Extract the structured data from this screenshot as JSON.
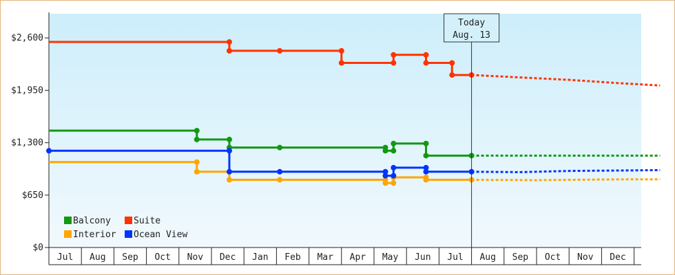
{
  "chart_data": {
    "type": "line",
    "ylim": [
      0,
      2900
    ],
    "yticks": [
      0,
      650,
      1300,
      1950,
      2600
    ],
    "ytick_labels": [
      "$0",
      "$650",
      "$1,300",
      "$1,950",
      "$2,600"
    ],
    "months": [
      "Jul",
      "Aug",
      "Sep",
      "Oct",
      "Nov",
      "Dec",
      "Jan",
      "Feb",
      "Mar",
      "Apr",
      "May",
      "Jun",
      "Jul",
      "Aug",
      "Sep",
      "Oct",
      "Nov",
      "Dec"
    ],
    "today": {
      "line1": "Today",
      "line2": "Aug. 13",
      "x": 13.0
    },
    "legend": {
      "placement": "bottom-left"
    },
    "series": [
      {
        "name": "Suite",
        "color": "#ff3300",
        "points": [
          [
            0,
            2550
          ],
          [
            5.55,
            2550
          ],
          [
            5.55,
            2440
          ],
          [
            7.1,
            2440
          ],
          [
            9.0,
            2440
          ],
          [
            9.0,
            2290
          ],
          [
            10.6,
            2290
          ],
          [
            10.6,
            2390
          ],
          [
            11.6,
            2390
          ],
          [
            11.6,
            2290
          ],
          [
            12.4,
            2290
          ],
          [
            12.4,
            2140
          ],
          [
            13.0,
            2140
          ]
        ],
        "dots": [
          [
            5.55,
            2550
          ],
          [
            5.55,
            2440
          ],
          [
            7.1,
            2440
          ],
          [
            9.0,
            2440
          ],
          [
            9.0,
            2290
          ],
          [
            10.6,
            2290
          ],
          [
            10.6,
            2390
          ],
          [
            11.6,
            2390
          ],
          [
            11.6,
            2290
          ],
          [
            12.4,
            2290
          ],
          [
            12.4,
            2140
          ],
          [
            13.0,
            2140
          ]
        ],
        "projection": [
          [
            13.0,
            2140
          ],
          [
            14.5,
            2110
          ],
          [
            16.0,
            2080
          ],
          [
            17.5,
            2040
          ],
          [
            18.8,
            2010
          ]
        ]
      },
      {
        "name": "Balcony",
        "color": "#119911",
        "points": [
          [
            0,
            1450
          ],
          [
            4.55,
            1450
          ],
          [
            4.55,
            1340
          ],
          [
            5.55,
            1340
          ],
          [
            5.55,
            1240
          ],
          [
            7.1,
            1240
          ],
          [
            10.35,
            1240
          ],
          [
            10.35,
            1200
          ],
          [
            10.6,
            1200
          ],
          [
            10.6,
            1290
          ],
          [
            11.6,
            1290
          ],
          [
            11.6,
            1140
          ],
          [
            13.0,
            1140
          ]
        ],
        "dots": [
          [
            4.55,
            1450
          ],
          [
            4.55,
            1340
          ],
          [
            5.55,
            1340
          ],
          [
            5.55,
            1240
          ],
          [
            7.1,
            1240
          ],
          [
            10.35,
            1240
          ],
          [
            10.35,
            1200
          ],
          [
            10.6,
            1200
          ],
          [
            10.6,
            1290
          ],
          [
            11.6,
            1290
          ],
          [
            11.6,
            1140
          ],
          [
            13.0,
            1140
          ]
        ],
        "projection": [
          [
            13.0,
            1140
          ],
          [
            16.0,
            1140
          ],
          [
            18.8,
            1140
          ]
        ]
      },
      {
        "name": "Interior",
        "color": "#ffa500",
        "points": [
          [
            0,
            1060
          ],
          [
            4.55,
            1060
          ],
          [
            4.55,
            940
          ],
          [
            5.55,
            940
          ],
          [
            5.55,
            840
          ],
          [
            7.1,
            840
          ],
          [
            10.35,
            840
          ],
          [
            10.35,
            800
          ],
          [
            10.6,
            800
          ],
          [
            10.6,
            870
          ],
          [
            11.6,
            870
          ],
          [
            11.6,
            840
          ],
          [
            13.0,
            840
          ]
        ],
        "dots": [
          [
            4.55,
            1060
          ],
          [
            4.55,
            940
          ],
          [
            5.55,
            940
          ],
          [
            5.55,
            840
          ],
          [
            7.1,
            840
          ],
          [
            10.35,
            840
          ],
          [
            10.35,
            800
          ],
          [
            10.6,
            800
          ],
          [
            10.6,
            870
          ],
          [
            11.6,
            870
          ],
          [
            11.6,
            840
          ],
          [
            13.0,
            840
          ]
        ],
        "projection": [
          [
            13.0,
            840
          ],
          [
            15.0,
            835
          ],
          [
            16.0,
            840
          ],
          [
            17.5,
            845
          ],
          [
            18.8,
            845
          ]
        ]
      },
      {
        "name": "Ocean View",
        "color": "#0033ff",
        "points": [
          [
            0,
            1200
          ],
          [
            5.55,
            1200
          ],
          [
            5.55,
            940
          ],
          [
            7.1,
            940
          ],
          [
            10.35,
            940
          ],
          [
            10.35,
            890
          ],
          [
            10.6,
            890
          ],
          [
            10.6,
            990
          ],
          [
            11.6,
            990
          ],
          [
            11.6,
            940
          ],
          [
            13.0,
            940
          ]
        ],
        "dots": [
          [
            0,
            1200
          ],
          [
            5.55,
            1200
          ],
          [
            5.55,
            940
          ],
          [
            7.1,
            940
          ],
          [
            10.35,
            940
          ],
          [
            10.35,
            890
          ],
          [
            10.6,
            890
          ],
          [
            10.6,
            990
          ],
          [
            11.6,
            990
          ],
          [
            11.6,
            940
          ],
          [
            13.0,
            940
          ]
        ],
        "projection": [
          [
            13.0,
            940
          ],
          [
            14.5,
            935
          ],
          [
            16.0,
            950
          ],
          [
            17.5,
            955
          ],
          [
            18.8,
            960
          ]
        ]
      }
    ]
  }
}
